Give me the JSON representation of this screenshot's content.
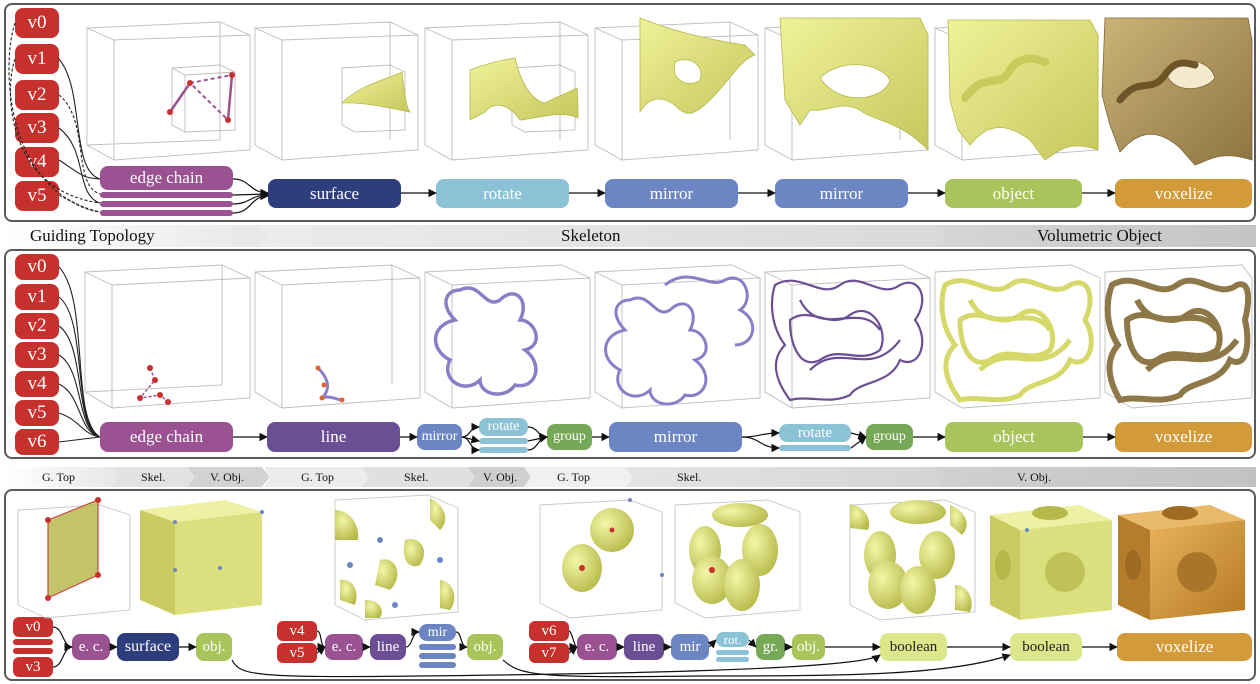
{
  "colors": {
    "red": "#c6312d",
    "edge_chain": "#9b5292",
    "surface": "#2e3d7c",
    "rotate": "#8cc2d6",
    "mirror": "#6c86c3",
    "object": "#a8c45a",
    "voxelize": "#d39a3a",
    "line": "#6b4e94",
    "group": "#75a957",
    "boolean": "#dbe78a",
    "yellow_surface": "#e6e98a",
    "purple_curve": "#8a7fc7",
    "voxel_brown": "#bda060"
  },
  "row1": {
    "inputs": [
      "v0",
      "v1",
      "v2",
      "v3",
      "v4",
      "v5"
    ],
    "nodes": [
      "edge chain",
      "surface",
      "rotate",
      "mirror",
      "mirror",
      "object",
      "voxelize"
    ]
  },
  "stages": {
    "guiding": "Guiding Topology",
    "skeleton": "Skeleton",
    "volumetric": "Volumetric Object"
  },
  "row2": {
    "inputs": [
      "v0",
      "v1",
      "v2",
      "v3",
      "v4",
      "v5",
      "v6"
    ],
    "nodes": [
      "edge chain",
      "line",
      "mirror",
      "rotate",
      "group",
      "mirror",
      "rotate",
      "group",
      "object",
      "voxelize"
    ]
  },
  "stages_small": {
    "a_gtop": "G. Top",
    "a_skel": "Skel.",
    "a_vobj": "V. Obj.",
    "b_gtop": "G. Top",
    "b_skel": "Skel.",
    "b_vobj": "V. Obj.",
    "c_gtop": "G. Top",
    "c_skel": "Skel.",
    "c_vobj": "V. Obj."
  },
  "row3": {
    "inputs_a": [
      "v0",
      "v3"
    ],
    "nodes_a": [
      "e. c.",
      "surface",
      "obj."
    ],
    "inputs_b": [
      "v4",
      "v5"
    ],
    "nodes_b": [
      "e. c.",
      "line",
      "mir",
      "obj."
    ],
    "inputs_c": [
      "v6",
      "v7"
    ],
    "nodes_c": [
      "e. c.",
      "line",
      "mir",
      "rot.",
      "gr.",
      "obj."
    ],
    "nodes_end": [
      "boolean",
      "boolean",
      "voxelize"
    ]
  }
}
